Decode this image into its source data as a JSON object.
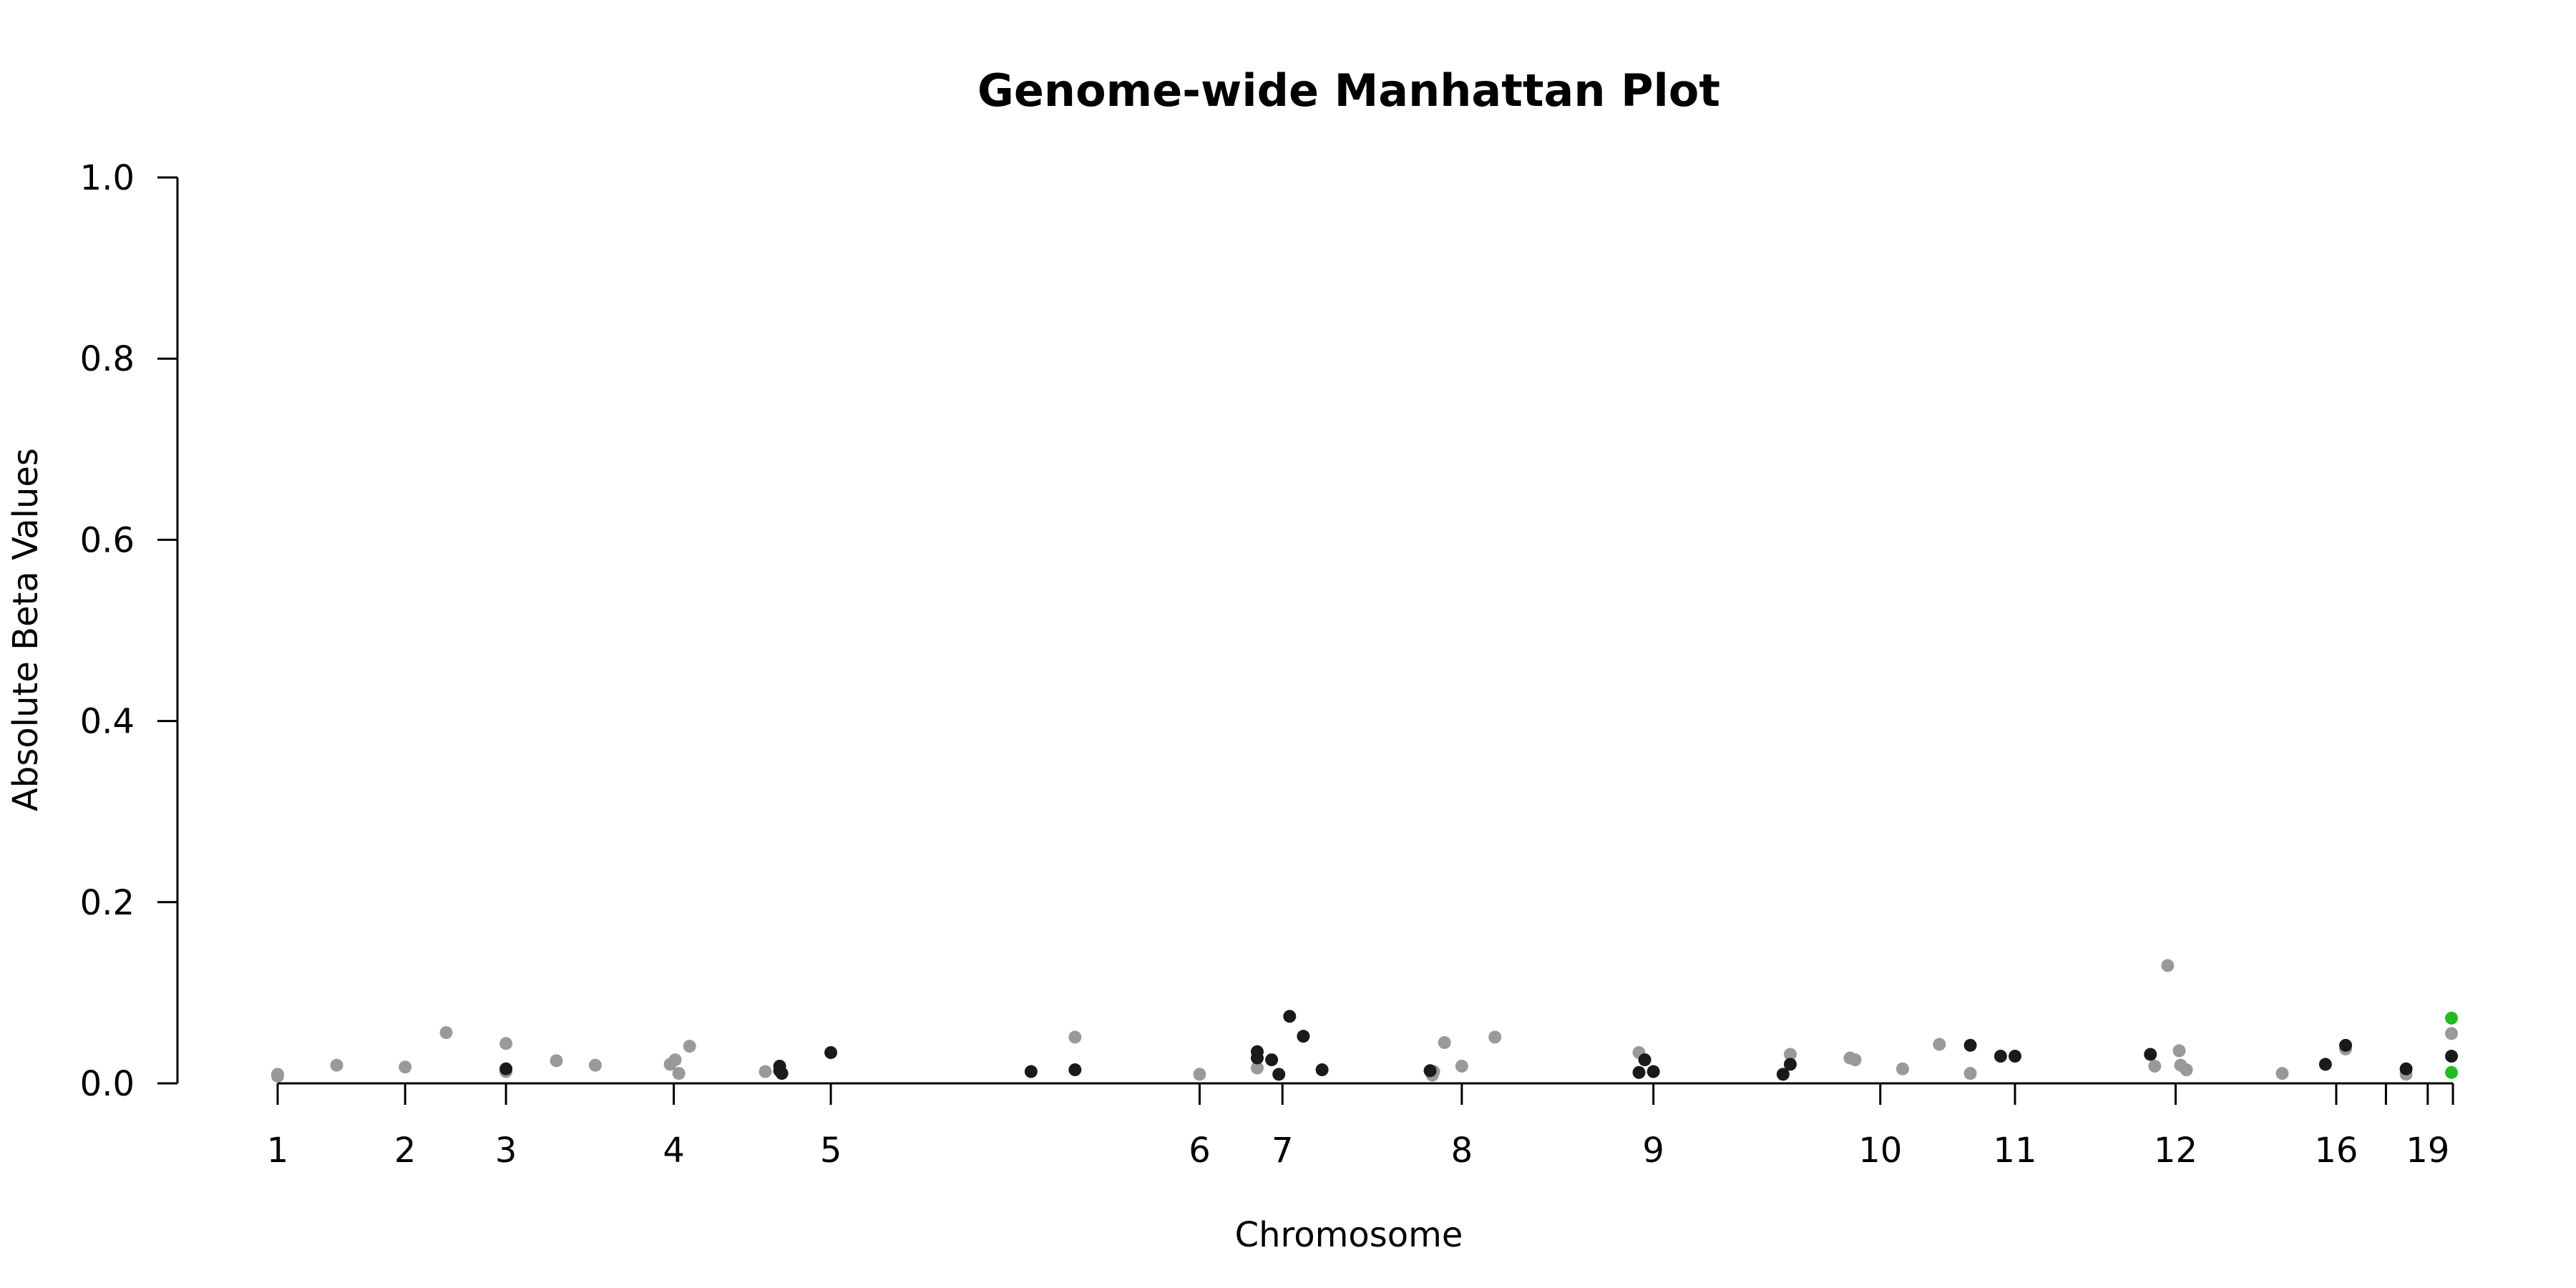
{
  "chart_data": {
    "type": "scatter",
    "title": "Genome-wide Manhattan Plot",
    "xlabel": "Chromosome",
    "ylabel": "Absolute Beta Values",
    "ylim": [
      0,
      1
    ],
    "y_ticks": [
      {
        "value": 0,
        "label": "0.0"
      },
      {
        "value": 0.2,
        "label": "0.2"
      },
      {
        "value": 0.4,
        "label": "0.4"
      },
      {
        "value": 0.6,
        "label": "0.6"
      },
      {
        "value": 0.8,
        "label": "0.8"
      },
      {
        "value": 1.0,
        "label": "1.0"
      }
    ],
    "xlim": [
      0,
      3.02
    ],
    "x_ticks": [
      {
        "pos": 0.0,
        "label": "1"
      },
      {
        "pos": 0.177,
        "label": "2"
      },
      {
        "pos": 0.317,
        "label": "3"
      },
      {
        "pos": 0.55,
        "label": "4"
      },
      {
        "pos": 0.768,
        "label": "5"
      },
      {
        "pos": 1.28,
        "label": "6"
      },
      {
        "pos": 1.395,
        "label": "7"
      },
      {
        "pos": 1.644,
        "label": "8"
      },
      {
        "pos": 1.91,
        "label": "9"
      },
      {
        "pos": 2.225,
        "label": "10"
      },
      {
        "pos": 2.412,
        "label": "11"
      },
      {
        "pos": 2.635,
        "label": "12"
      },
      {
        "pos": 2.858,
        "label": "16"
      },
      {
        "pos": 2.927,
        "label": ""
      },
      {
        "pos": 2.985,
        "label": "19"
      },
      {
        "pos": 3.02,
        "label": ""
      }
    ],
    "colors": {
      "even": "#1a1a1a",
      "odd": "#999999",
      "highlight": "#22bb22"
    },
    "series": [
      {
        "color_key": "odd",
        "points": [
          [
            0.0,
            0.01
          ],
          [
            0.0,
            0.008
          ],
          [
            0.082,
            0.02
          ],
          [
            0.177,
            0.018
          ],
          [
            0.234,
            0.056
          ],
          [
            0.317,
            0.044
          ],
          [
            0.317,
            0.013
          ],
          [
            0.387,
            0.025
          ],
          [
            0.441,
            0.02
          ],
          [
            0.545,
            0.021
          ],
          [
            0.552,
            0.026
          ],
          [
            0.557,
            0.011
          ],
          [
            0.572,
            0.041
          ],
          [
            0.677,
            0.013
          ],
          [
            1.107,
            0.051
          ],
          [
            1.28,
            0.01
          ],
          [
            1.36,
            0.017
          ],
          [
            1.603,
            0.009
          ],
          [
            1.605,
            0.013
          ],
          [
            1.62,
            0.045
          ],
          [
            1.644,
            0.019
          ],
          [
            1.69,
            0.051
          ],
          [
            1.89,
            0.034
          ],
          [
            2.1,
            0.032
          ],
          [
            2.183,
            0.028
          ],
          [
            2.19,
            0.026
          ],
          [
            2.256,
            0.016
          ],
          [
            2.307,
            0.043
          ],
          [
            2.35,
            0.011
          ],
          [
            2.606,
            0.019
          ],
          [
            2.624,
            0.13
          ],
          [
            2.64,
            0.036
          ],
          [
            2.642,
            0.02
          ],
          [
            2.65,
            0.015
          ],
          [
            2.783,
            0.011
          ],
          [
            2.871,
            0.038
          ],
          [
            2.955,
            0.01
          ],
          [
            3.018,
            0.055
          ]
        ]
      },
      {
        "color_key": "even",
        "points": [
          [
            0.317,
            0.016
          ],
          [
            0.697,
            0.019
          ],
          [
            0.697,
            0.014
          ],
          [
            0.7,
            0.011
          ],
          [
            0.768,
            0.034
          ],
          [
            1.046,
            0.013
          ],
          [
            1.107,
            0.015
          ],
          [
            1.36,
            0.035
          ],
          [
            1.36,
            0.028
          ],
          [
            1.38,
            0.026
          ],
          [
            1.39,
            0.01
          ],
          [
            1.405,
            0.074
          ],
          [
            1.424,
            0.052
          ],
          [
            1.45,
            0.015
          ],
          [
            1.6,
            0.014
          ],
          [
            1.89,
            0.012
          ],
          [
            1.898,
            0.026
          ],
          [
            1.91,
            0.013
          ],
          [
            2.09,
            0.01
          ],
          [
            2.1,
            0.021
          ],
          [
            2.35,
            0.042
          ],
          [
            2.392,
            0.03
          ],
          [
            2.412,
            0.03
          ],
          [
            2.6,
            0.032
          ],
          [
            2.843,
            0.021
          ],
          [
            2.871,
            0.042
          ],
          [
            2.955,
            0.016
          ],
          [
            3.018,
            0.03
          ]
        ]
      },
      {
        "color_key": "highlight",
        "points": [
          [
            3.018,
            0.072
          ],
          [
            3.018,
            0.012
          ]
        ]
      }
    ]
  }
}
